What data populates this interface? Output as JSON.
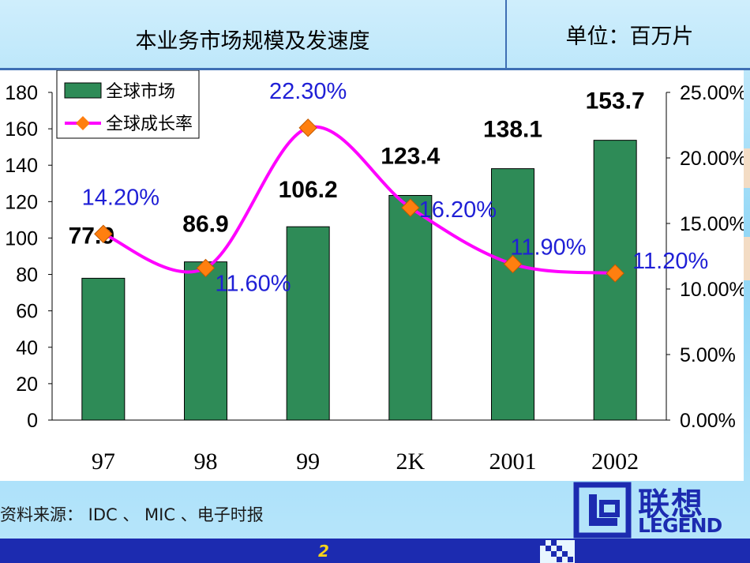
{
  "header": {
    "title": "本业务市场规模及发速度",
    "unit": "单位：百万片"
  },
  "footer": {
    "source": "资料来源： IDC 、 MIC 、电子时报",
    "page_number": "2",
    "logo_cn": "联想",
    "logo_en": "LEGEND"
  },
  "colors": {
    "bar": "#2e8b57",
    "line": "#ff00ff",
    "marker": "#ff7f0f",
    "bar_label": "#000000",
    "line_label": "#1f1fd6",
    "brand_blue": "#1c2bb0"
  },
  "chart_data": {
    "type": "bar",
    "categories": [
      "97",
      "98",
      "99",
      "2K",
      "2001",
      "2002"
    ],
    "series": [
      {
        "name": "全球市场",
        "type": "bar",
        "axis": "left",
        "values": [
          77.9,
          86.9,
          106.2,
          123.4,
          138.1,
          153.7
        ],
        "labels": [
          "77.9",
          "86.9",
          "106.2",
          "123.4",
          "138.1",
          "153.7"
        ]
      },
      {
        "name": "全球成长率",
        "type": "line",
        "axis": "right",
        "values": [
          0.142,
          0.116,
          0.223,
          0.162,
          0.119,
          0.112
        ],
        "labels": [
          "14.20%",
          "11.60%",
          "22.30%",
          "16.20%",
          "11.90%",
          "11.20%"
        ]
      }
    ],
    "y_left": {
      "ylim": [
        0,
        180
      ],
      "ticks": [
        "0",
        "20",
        "40",
        "60",
        "80",
        "100",
        "120",
        "140",
        "160",
        "180"
      ]
    },
    "y_right": {
      "ylim": [
        0,
        0.25
      ],
      "ticks": [
        "0.00%",
        "5.00%",
        "10.00%",
        "15.00%",
        "20.00%",
        "25.00%"
      ]
    },
    "legend": "top-left",
    "grid": false
  }
}
